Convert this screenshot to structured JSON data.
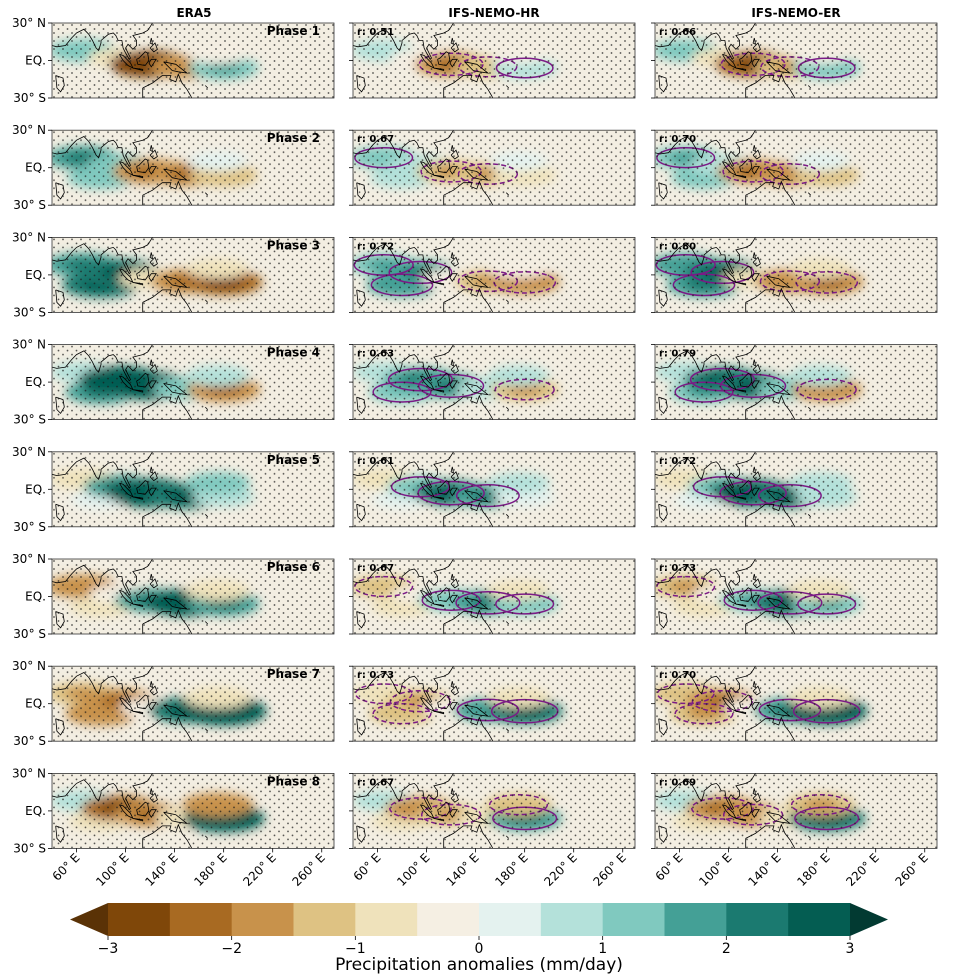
{
  "chart_data": {
    "type": "heatmap",
    "panel_titles": [
      "ERA5",
      "IFS-NEMO-HR",
      "IFS-NEMO-ER"
    ],
    "phases": [
      "Phase 1",
      "Phase 2",
      "Phase 3",
      "Phase 4",
      "Phase 5",
      "Phase 6",
      "Phase 7",
      "Phase 8"
    ],
    "correlations": {
      "IFS-NEMO-HR": [
        "r: 0.51",
        "r: 0.67",
        "r: 0.72",
        "r: 0.63",
        "r: 0.61",
        "r: 0.67",
        "r: 0.73",
        "r: 0.67"
      ],
      "IFS-NEMO-ER": [
        "r: 0.66",
        "r: 0.70",
        "r: 0.80",
        "r: 0.79",
        "r: 0.72",
        "r: 0.73",
        "r: 0.70",
        "r: 0.69"
      ]
    },
    "y_ticks": [
      "30° N",
      "EQ.",
      "30° S"
    ],
    "x_ticks": [
      "60° E",
      "100° E",
      "140° E",
      "180° E",
      "220° E",
      "260° E"
    ],
    "xlim": [
      40,
      270
    ],
    "ylim": [
      -30,
      30
    ],
    "colorbar": {
      "label": "Precipitation anomalies (mm/day)",
      "range": [
        -3,
        3
      ],
      "ticks": [
        "−3",
        "−2",
        "−1",
        "0",
        "1",
        "2",
        "3"
      ],
      "extend": "both",
      "colors": [
        "#5a3206",
        "#7f4709",
        "#a86a22",
        "#c8924b",
        "#dec283",
        "#efe2bb",
        "#f5efe3",
        "#e4f2ef",
        "#b4e1da",
        "#80c9bf",
        "#44a096",
        "#1b7a70",
        "#045d52",
        "#023a32"
      ]
    },
    "anomaly_features": [
      {
        "lon": 65,
        "lat": 8,
        "values_by_phase": [
          1.2,
          1.6,
          1.8,
          0.8,
          -1.0,
          -1.6,
          -1.4,
          0.9
        ]
      },
      {
        "lon": 80,
        "lat": -8,
        "values_by_phase": [
          0.0,
          1.2,
          2.2,
          1.6,
          0.4,
          -0.8,
          -1.6,
          -0.8
        ]
      },
      {
        "lon": 95,
        "lat": 2,
        "values_by_phase": [
          -0.6,
          1.0,
          2.4,
          2.6,
          1.6,
          -0.4,
          -2.0,
          -2.2
        ]
      },
      {
        "lon": 120,
        "lat": -3,
        "values_by_phase": [
          -2.6,
          -2.0,
          -0.6,
          2.8,
          3.0,
          1.6,
          -0.4,
          -1.8
        ]
      },
      {
        "lon": 150,
        "lat": -5,
        "values_by_phase": [
          -1.6,
          -1.8,
          -1.8,
          1.2,
          2.4,
          2.6,
          2.2,
          -0.8
        ]
      },
      {
        "lon": 180,
        "lat": -6,
        "values_by_phase": [
          1.4,
          -1.2,
          -2.2,
          -1.8,
          0.6,
          1.6,
          3.0,
          2.6
        ]
      },
      {
        "lon": 175,
        "lat": 5,
        "values_by_phase": [
          -0.4,
          0.4,
          -0.6,
          0.8,
          1.0,
          -0.8,
          -1.0,
          -1.6
        ]
      }
    ]
  }
}
